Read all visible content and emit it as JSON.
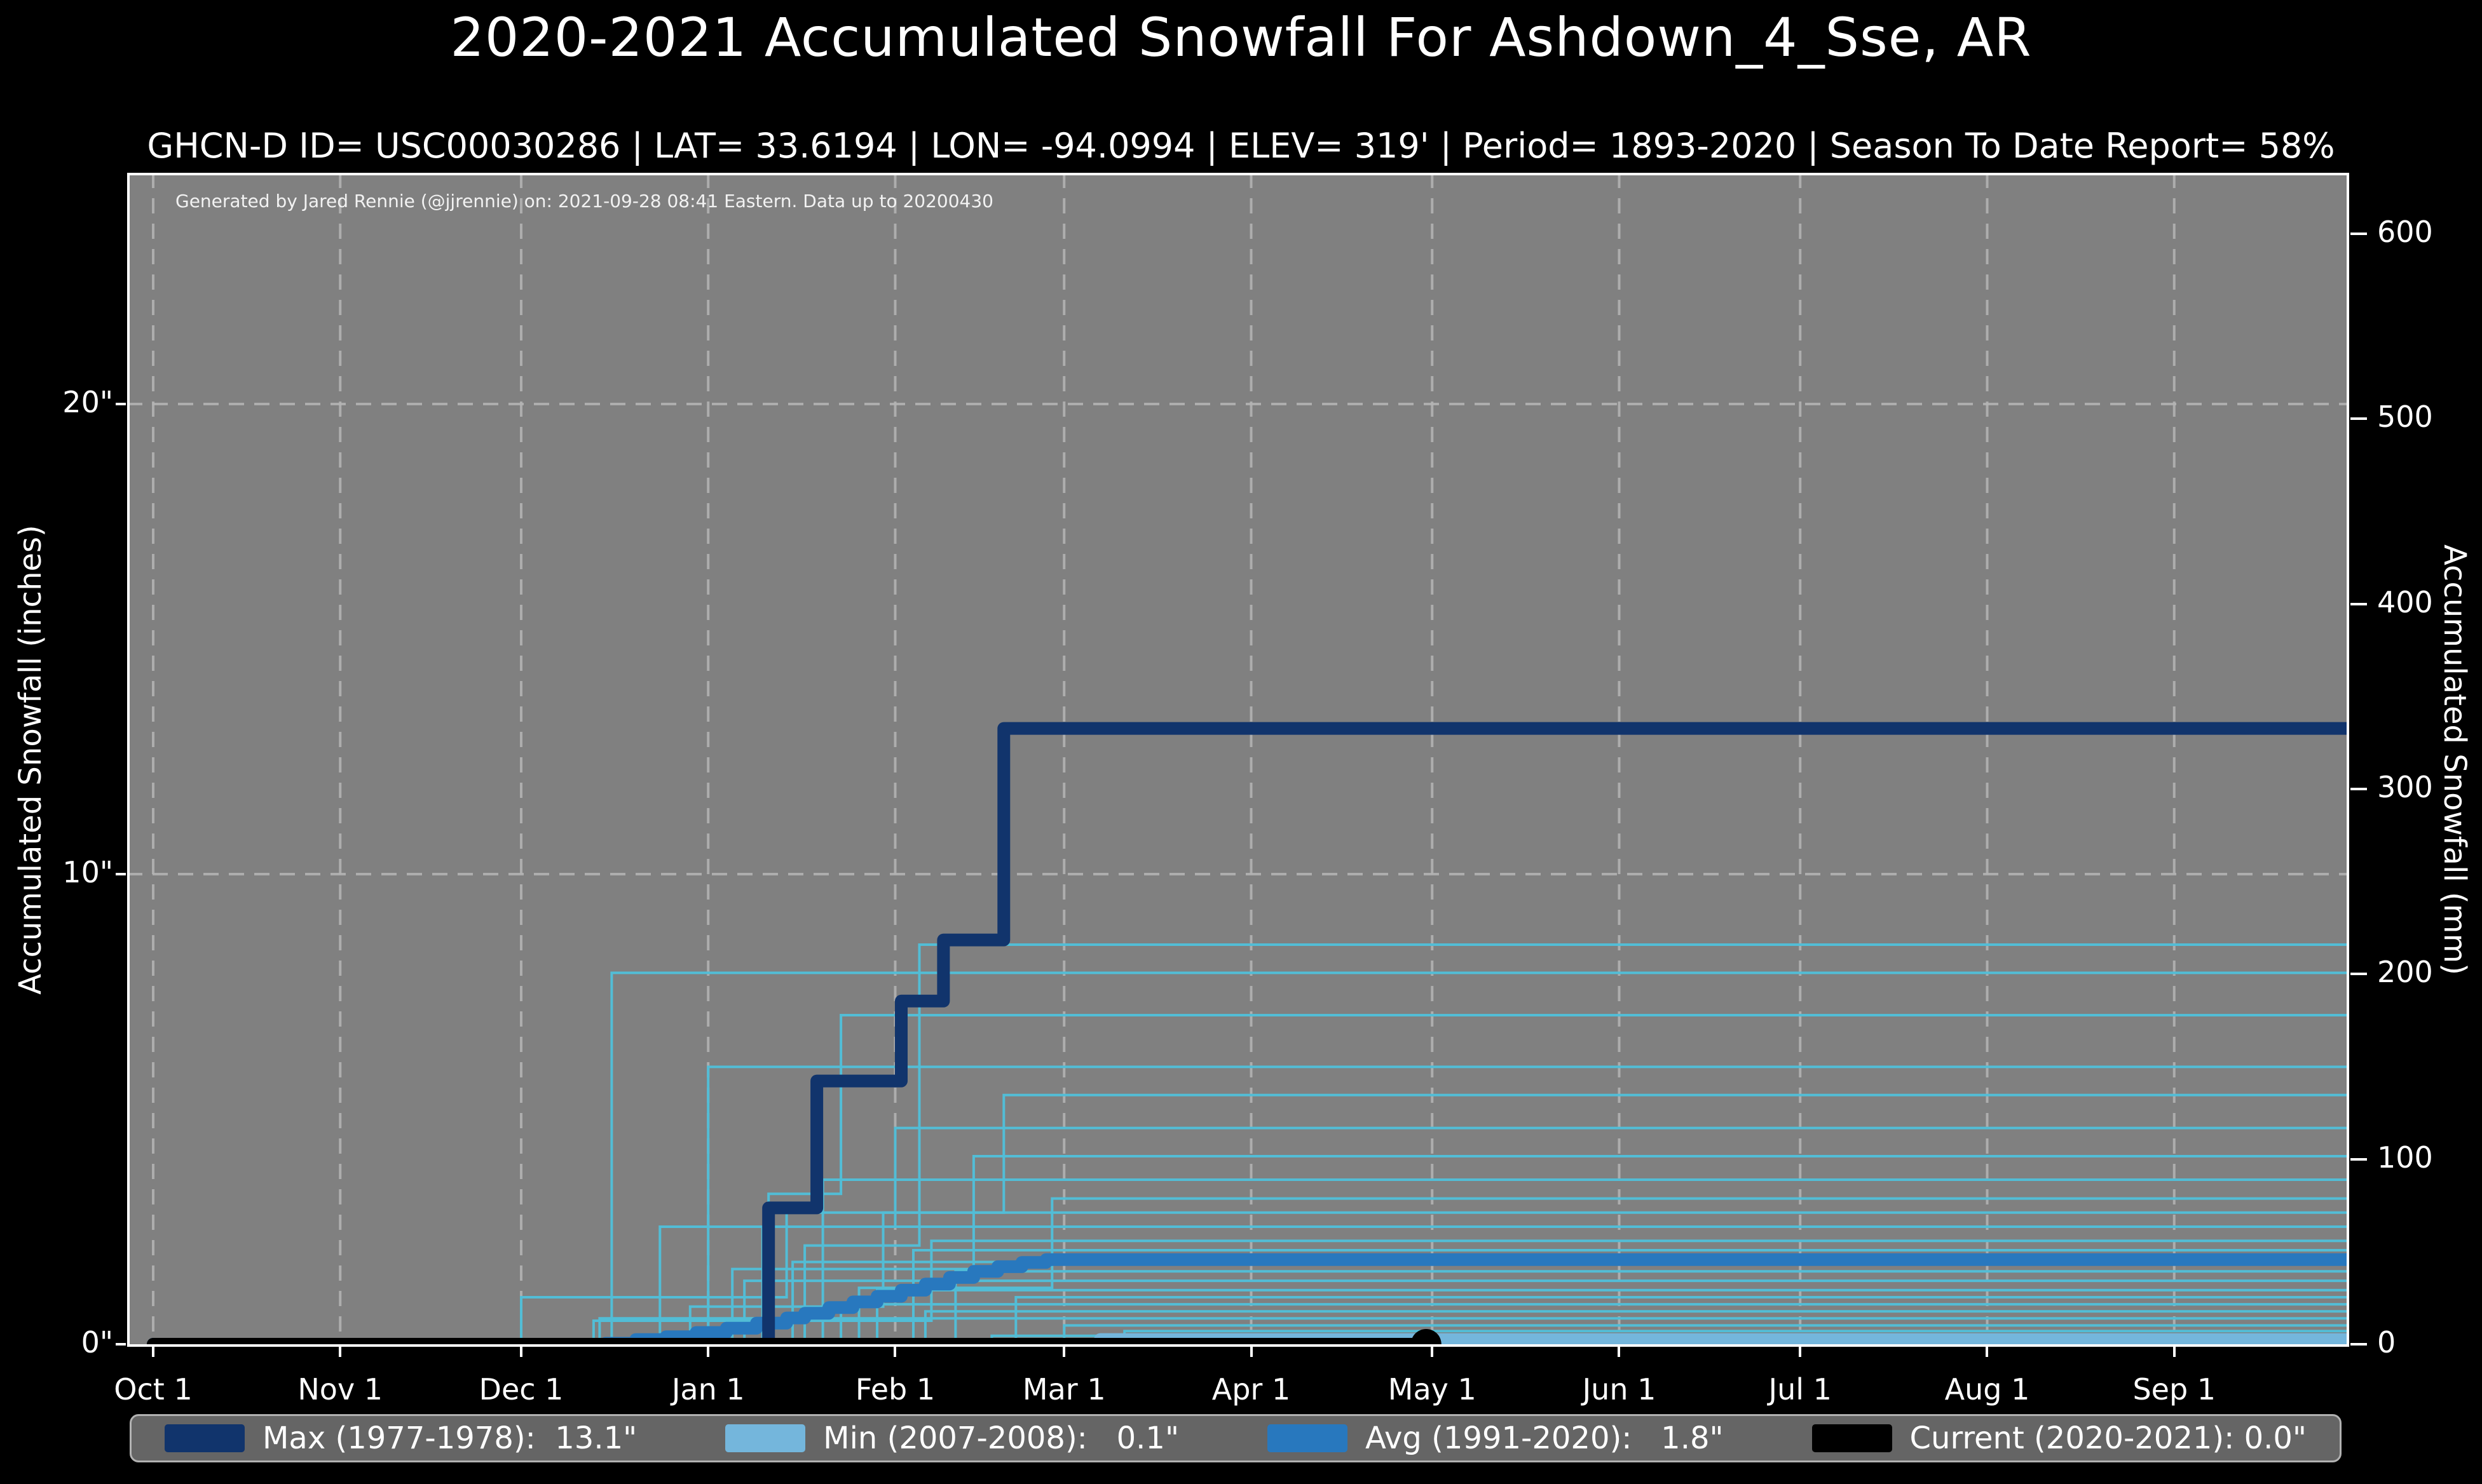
{
  "title": "2020-2021 Accumulated Snowfall For Ashdown_4_Sse, AR",
  "subtitle": "GHCN-D ID= USC00030286 | LAT= 33.6194 | LON= -94.0994 | ELEV= 319' | Period= 1893-2020 | Season To Date Report= 58%",
  "attribution": "Generated by Jared Rennie (@jjrennie) on: 2021-09-28 08:41 Eastern. Data up to 20200430",
  "colors": {
    "background": "#000000",
    "plot_bg": "#808080",
    "grid": "#b5b5b5",
    "spine": "#ffffff",
    "text": "#ffffff",
    "max": "#11346c",
    "avg": "#2878be",
    "min": "#74b6dc",
    "current": "#000000",
    "season": "#52bdd6",
    "legend_bg": "#656565",
    "legend_border": "#b2b2b2"
  },
  "chart_data": {
    "type": "line",
    "x_unit": "days_since_oct1",
    "x_range_days": [
      0,
      364
    ],
    "grid": {
      "style": "dashed",
      "y_inches": [
        10,
        20
      ]
    },
    "y_left": {
      "label": "Accumulated Snowfall (inches)",
      "ticks": [
        0,
        10,
        20
      ],
      "tick_labels": [
        "0\"",
        "10\"",
        "20\""
      ],
      "range_inches": [
        0,
        25
      ]
    },
    "y_right": {
      "label": "Accumulated Snowfall (mm)",
      "ticks": [
        0,
        100,
        200,
        300,
        400,
        500,
        600
      ],
      "tick_labels": [
        "0",
        "100",
        "200",
        "300",
        "400",
        "500",
        "600"
      ],
      "mm_per_inch": 25.4
    },
    "x_ticks": {
      "labels": [
        "Oct 1",
        "Nov 1",
        "Dec 1",
        "Jan 1",
        "Feb 1",
        "Mar 1",
        "Apr 1",
        "May 1",
        "Jun 1",
        "Jul 1",
        "Aug 1",
        "Sep 1"
      ],
      "days": [
        0,
        31,
        61,
        92,
        123,
        151,
        182,
        212,
        243,
        273,
        304,
        335
      ]
    },
    "series": [
      {
        "key": "max",
        "name": "Max (1977-1978)",
        "total_in": 13.1,
        "width": 20,
        "points": [
          [
            0,
            0
          ],
          [
            100,
            0
          ],
          [
            102,
            2.9
          ],
          [
            109,
            2.9
          ],
          [
            110,
            5.6
          ],
          [
            122,
            5.6
          ],
          [
            124,
            7.3
          ],
          [
            130,
            7.3
          ],
          [
            131,
            8.6
          ],
          [
            139,
            8.6
          ],
          [
            141,
            13.1
          ],
          [
            364,
            13.1
          ]
        ]
      },
      {
        "key": "min",
        "name": "Min (2007-2008)",
        "total_in": 0.1,
        "width": 20,
        "points": [
          [
            0,
            0
          ],
          [
            156,
            0
          ],
          [
            157,
            0.1
          ],
          [
            364,
            0.1
          ]
        ]
      },
      {
        "key": "avg",
        "name": "Avg (1991-2020)",
        "total_in": 1.8,
        "width": 20,
        "points": [
          [
            0,
            0
          ],
          [
            75,
            0.02
          ],
          [
            80,
            0.1
          ],
          [
            85,
            0.16
          ],
          [
            90,
            0.25
          ],
          [
            95,
            0.34
          ],
          [
            100,
            0.45
          ],
          [
            105,
            0.56
          ],
          [
            108,
            0.66
          ],
          [
            112,
            0.78
          ],
          [
            116,
            0.9
          ],
          [
            120,
            1.02
          ],
          [
            124,
            1.15
          ],
          [
            128,
            1.28
          ],
          [
            132,
            1.42
          ],
          [
            136,
            1.55
          ],
          [
            140,
            1.65
          ],
          [
            144,
            1.74
          ],
          [
            148,
            1.8
          ],
          [
            364,
            1.8
          ]
        ]
      },
      {
        "key": "current",
        "name": "Current (2020-2021)",
        "total_in": 0.0,
        "width": 20,
        "points": [
          [
            0,
            0
          ],
          [
            211,
            0
          ]
        ],
        "end_marker_day": 211,
        "end_marker_radius": 24
      }
    ],
    "historical_seasons": [
      {
        "points": [
          [
            0,
            0
          ],
          [
            75,
            0
          ],
          [
            76,
            7.9
          ],
          [
            364,
            7.9
          ]
        ]
      },
      {
        "points": [
          [
            0,
            0
          ],
          [
            91,
            0
          ],
          [
            92,
            5.9
          ],
          [
            364,
            5.9
          ]
        ]
      },
      {
        "points": [
          [
            0,
            0
          ],
          [
            101,
            0
          ],
          [
            102,
            3.2
          ],
          [
            113,
            3.2
          ],
          [
            114,
            7.0
          ],
          [
            364,
            7.0
          ]
        ]
      },
      {
        "points": [
          [
            0,
            0
          ],
          [
            107,
            0
          ],
          [
            108,
            2.1
          ],
          [
            126,
            2.1
          ],
          [
            127,
            8.5
          ],
          [
            364,
            8.5
          ]
        ]
      },
      {
        "points": [
          [
            0,
            0
          ],
          [
            60,
            0
          ],
          [
            61,
            1.0
          ],
          [
            104,
            1.0
          ],
          [
            105,
            2.8
          ],
          [
            140,
            2.8
          ],
          [
            141,
            5.3
          ],
          [
            364,
            5.3
          ]
        ]
      },
      {
        "points": [
          [
            0,
            0
          ],
          [
            83,
            0
          ],
          [
            84,
            2.5
          ],
          [
            122,
            2.5
          ],
          [
            123,
            4.6
          ],
          [
            364,
            4.6
          ]
        ]
      },
      {
        "points": [
          [
            0,
            0
          ],
          [
            95,
            0
          ],
          [
            96,
            1.6
          ],
          [
            135,
            1.6
          ],
          [
            136,
            4.0
          ],
          [
            364,
            4.0
          ]
        ]
      },
      {
        "points": [
          [
            0,
            0
          ],
          [
            110,
            0
          ],
          [
            111,
            3.5
          ],
          [
            364,
            3.5
          ]
        ]
      },
      {
        "points": [
          [
            0,
            0
          ],
          [
            116,
            0
          ],
          [
            117,
            1.2
          ],
          [
            148,
            1.2
          ],
          [
            149,
            3.1
          ],
          [
            364,
            3.1
          ]
        ]
      },
      {
        "points": [
          [
            0,
            0
          ],
          [
            88,
            0
          ],
          [
            89,
            0.8
          ],
          [
            120,
            0.8
          ],
          [
            121,
            2.8
          ],
          [
            364,
            2.8
          ]
        ]
      },
      {
        "points": [
          [
            0,
            0
          ],
          [
            100,
            0
          ],
          [
            101,
            2.5
          ],
          [
            364,
            2.5
          ]
        ]
      },
      {
        "points": [
          [
            0,
            0
          ],
          [
            72,
            0
          ],
          [
            73,
            0.5
          ],
          [
            128,
            0.5
          ],
          [
            129,
            2.2
          ],
          [
            364,
            2.2
          ]
        ]
      },
      {
        "points": [
          [
            0,
            0
          ],
          [
            125,
            0
          ],
          [
            126,
            2.0
          ],
          [
            364,
            2.0
          ]
        ]
      },
      {
        "points": [
          [
            0,
            0
          ],
          [
            105,
            0
          ],
          [
            106,
            1.75
          ],
          [
            364,
            1.75
          ]
        ]
      },
      {
        "points": [
          [
            0,
            0
          ],
          [
            132,
            0
          ],
          [
            133,
            1.55
          ],
          [
            364,
            1.55
          ]
        ]
      },
      {
        "points": [
          [
            0,
            0
          ],
          [
            97,
            0
          ],
          [
            98,
            1.35
          ],
          [
            364,
            1.35
          ]
        ]
      },
      {
        "points": [
          [
            0,
            0
          ],
          [
            119,
            0
          ],
          [
            120,
            1.15
          ],
          [
            364,
            1.15
          ]
        ]
      },
      {
        "points": [
          [
            0,
            0
          ],
          [
            142,
            0
          ],
          [
            143,
            1.0
          ],
          [
            364,
            1.0
          ]
        ]
      },
      {
        "points": [
          [
            0,
            0
          ],
          [
            113,
            0
          ],
          [
            114,
            0.85
          ],
          [
            364,
            0.85
          ]
        ]
      },
      {
        "points": [
          [
            0,
            0
          ],
          [
            127,
            0
          ],
          [
            128,
            0.7
          ],
          [
            364,
            0.7
          ]
        ]
      },
      {
        "points": [
          [
            0,
            0
          ],
          [
            73,
            0
          ],
          [
            74,
            0.55
          ],
          [
            364,
            0.55
          ]
        ]
      },
      {
        "points": [
          [
            0,
            0
          ],
          [
            150,
            0
          ],
          [
            151,
            0.4
          ],
          [
            364,
            0.4
          ]
        ]
      },
      {
        "points": [
          [
            0,
            0
          ],
          [
            160,
            0
          ],
          [
            161,
            0.28
          ],
          [
            364,
            0.28
          ]
        ]
      },
      {
        "points": [
          [
            0,
            0
          ],
          [
            138,
            0
          ],
          [
            139,
            0.18
          ],
          [
            364,
            0.18
          ]
        ]
      }
    ]
  },
  "legend": {
    "items": [
      {
        "label": "Max (1977-1978):  13.1\"",
        "color": "#11346c"
      },
      {
        "label": "Min (2007-2008):   0.1\"",
        "color": "#74b6dc"
      },
      {
        "label": "Avg (1991-2020):   1.8\"",
        "color": "#2878be"
      },
      {
        "label": "Current (2020-2021): 0.0\"",
        "color": "#000000"
      }
    ]
  }
}
